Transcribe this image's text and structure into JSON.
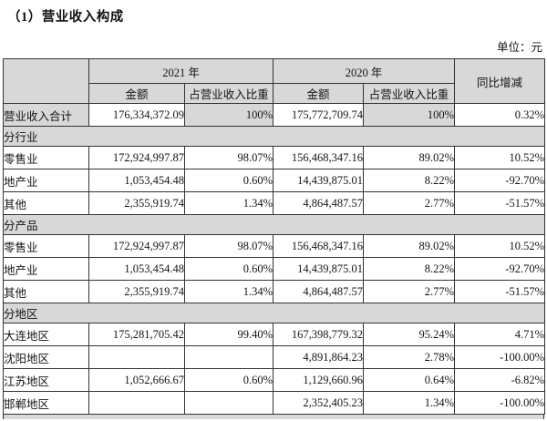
{
  "page": {
    "title": "（1）营业收入构成",
    "unit_label": "单位：元"
  },
  "colors": {
    "header_shade": "#d8d8d8",
    "border": "#333333",
    "text": "#141414",
    "background": "#ffffff"
  },
  "table": {
    "header": {
      "year_2021": "2021 年",
      "year_2020": "2020 年",
      "yoy": "同比增减",
      "amount_2021": "金额",
      "share_2021": "占营业收入比重",
      "amount_2020": "金额",
      "share_2020": "占营业收入比重"
    },
    "rows": [
      {
        "type": "total",
        "label": "营业收入合计",
        "cells": [
          "176,334,372.09",
          "100%",
          "175,772,709.74",
          "100%",
          "0.32%"
        ]
      },
      {
        "type": "section",
        "label": "分行业"
      },
      {
        "type": "data",
        "label": "零售业",
        "cells": [
          "172,924,997.87",
          "98.07%",
          "156,468,347.16",
          "89.02%",
          "10.52%"
        ]
      },
      {
        "type": "data",
        "label": "地产业",
        "cells": [
          "1,053,454.48",
          "0.60%",
          "14,439,875.01",
          "8.22%",
          "-92.70%"
        ]
      },
      {
        "type": "data",
        "label": "其他",
        "cells": [
          "2,355,919.74",
          "1.34%",
          "4,864,487.57",
          "2.77%",
          "-51.57%"
        ]
      },
      {
        "type": "section",
        "label": "分产品"
      },
      {
        "type": "data",
        "label": "零售业",
        "cells": [
          "172,924,997.87",
          "98.07%",
          "156,468,347.16",
          "89.02%",
          "10.52%"
        ]
      },
      {
        "type": "data",
        "label": "地产业",
        "cells": [
          "1,053,454.48",
          "0.60%",
          "14,439,875.01",
          "8.22%",
          "-92.70%"
        ]
      },
      {
        "type": "data",
        "label": "其他",
        "cells": [
          "2,355,919.74",
          "1.34%",
          "4,864,487.57",
          "2.77%",
          "-51.57%"
        ]
      },
      {
        "type": "section",
        "label": "分地区"
      },
      {
        "type": "data",
        "label": "大连地区",
        "cells": [
          "175,281,705.42",
          "99.40%",
          "167,398,779.32",
          "95.24%",
          "4.71%"
        ]
      },
      {
        "type": "data",
        "label": "沈阳地区",
        "cells": [
          "",
          "",
          "4,891,864.23",
          "2.78%",
          "-100.00%"
        ]
      },
      {
        "type": "data",
        "label": "江苏地区",
        "cells": [
          "1,052,666.67",
          "0.60%",
          "1,129,660.96",
          "0.64%",
          "-6.82%"
        ]
      },
      {
        "type": "data",
        "label": "邯郸地区",
        "cells": [
          "",
          "",
          "2,352,405.23",
          "1.34%",
          "-100.00%"
        ]
      }
    ]
  }
}
